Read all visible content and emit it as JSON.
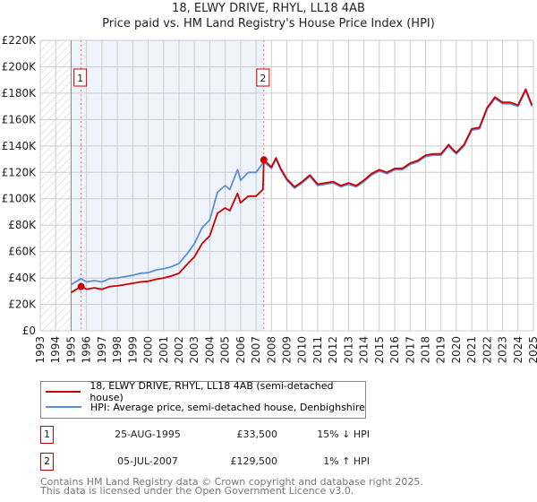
{
  "chart_data": {
    "type": "line",
    "title": "18, ELWY DRIVE, RHYL, LL18 4AB",
    "subtitle": "Price paid vs. HM Land Registry's House Price Index (HPI)",
    "xlim": [
      1993,
      2025
    ],
    "ylim": [
      0,
      220000
    ],
    "x_ticks": [
      "1993",
      "1994",
      "1995",
      "1996",
      "1997",
      "1998",
      "1999",
      "2000",
      "2001",
      "2002",
      "2003",
      "2004",
      "2005",
      "2006",
      "2007",
      "2008",
      "2009",
      "2010",
      "2011",
      "2012",
      "2013",
      "2014",
      "2015",
      "2016",
      "2017",
      "2018",
      "2019",
      "2020",
      "2021",
      "2022",
      "2023",
      "2024",
      "2025"
    ],
    "y_ticks": [
      "£0",
      "£20K",
      "£40K",
      "£60K",
      "£80K",
      "£100K",
      "£120K",
      "£140K",
      "£160K",
      "£180K",
      "£200K",
      "£220K"
    ],
    "grid": true,
    "series": [
      {
        "name": "18, ELWY DRIVE, RHYL, LL18 4AB (semi-detached house)",
        "color": "#cc0000",
        "x": [
          1995.0,
          1995.65,
          1996,
          1996.5,
          1997,
          1997.5,
          1998,
          1998.5,
          1999,
          1999.5,
          2000,
          2000.5,
          2001,
          2001.5,
          2002,
          2002.5,
          2003,
          2003.5,
          2004,
          2004.5,
          2005,
          2005.3,
          2005.8,
          2006,
          2006.5,
          2007,
          2007.45,
          2007.51,
          2008,
          2008.3,
          2008.6,
          2009,
          2009.5,
          2010,
          2010.5,
          2011,
          2011.5,
          2012,
          2012.5,
          2013,
          2013.5,
          2014,
          2014.5,
          2015,
          2015.5,
          2016,
          2016.5,
          2017,
          2017.5,
          2018,
          2018.5,
          2019,
          2019.5,
          2019.8,
          2020,
          2020.5,
          2021,
          2021.5,
          2022,
          2022.5,
          2023,
          2023.5,
          2024,
          2024.5,
          2024.9
        ],
        "y": [
          29000,
          33500,
          31500,
          32500,
          31500,
          33500,
          34000,
          35000,
          36000,
          37000,
          37500,
          39000,
          40000,
          41500,
          43500,
          50000,
          56000,
          66000,
          72000,
          89000,
          93000,
          91000,
          104000,
          97000,
          102000,
          102000,
          107000,
          129500,
          124000,
          131000,
          123000,
          115000,
          109000,
          113000,
          118000,
          111000,
          112000,
          113000,
          110000,
          112000,
          110000,
          114000,
          119000,
          122000,
          120000,
          123000,
          123000,
          127000,
          129000,
          133000,
          134000,
          134000,
          141000,
          137000,
          135000,
          141000,
          153000,
          154000,
          169000,
          177000,
          173000,
          173000,
          171000,
          183000,
          171000
        ]
      },
      {
        "name": "HPI: Average price, semi-detached house, Denbighshire",
        "color": "#5b8fd4",
        "x": [
          1995.0,
          1995.65,
          1996,
          1996.5,
          1997,
          1997.5,
          1998,
          1998.5,
          1999,
          1999.5,
          2000,
          2000.5,
          2001,
          2001.5,
          2002,
          2002.5,
          2003,
          2003.5,
          2004,
          2004.5,
          2005,
          2005.3,
          2005.8,
          2006,
          2006.5,
          2007,
          2007.51,
          2008,
          2008.3,
          2008.6,
          2009,
          2009.5,
          2010,
          2010.5,
          2011,
          2011.5,
          2012,
          2012.5,
          2013,
          2013.5,
          2014,
          2014.5,
          2015,
          2015.5,
          2016,
          2016.5,
          2017,
          2017.5,
          2018,
          2018.5,
          2019,
          2019.5,
          2019.8,
          2020,
          2020.5,
          2021,
          2021.5,
          2022,
          2022.5,
          2023,
          2023.5,
          2024,
          2024.5,
          2024.9
        ],
        "y": [
          35000,
          39500,
          37000,
          38000,
          37000,
          39500,
          40000,
          41000,
          42000,
          43500,
          44000,
          46000,
          47000,
          48500,
          51000,
          58000,
          66000,
          78000,
          84000,
          105000,
          110000,
          107000,
          122000,
          114000,
          120000,
          120000,
          128000,
          123000,
          130000,
          122000,
          114000,
          108000,
          112000,
          117000,
          110000,
          111000,
          112000,
          109000,
          111000,
          109000,
          113000,
          118000,
          121000,
          119000,
          122000,
          122000,
          126000,
          128000,
          132000,
          133000,
          133000,
          140000,
          136000,
          134000,
          140000,
          152000,
          153000,
          168000,
          176000,
          172000,
          172000,
          170000,
          182000,
          170000
        ]
      }
    ],
    "annotations": [
      {
        "label": "1",
        "x": 1995.65,
        "y": 33500
      },
      {
        "label": "2",
        "x": 2007.51,
        "y": 129500
      }
    ],
    "legend_placement": "bottom"
  },
  "legend": {
    "red_label": "18, ELWY DRIVE, RHYL, LL18 4AB (semi-detached house)",
    "blue_label": "HPI: Average price, semi-detached house, Denbighshire"
  },
  "transactions": [
    {
      "num": "1",
      "date": "25-AUG-1995",
      "price": "£33,500",
      "hpi": "15% ↓ HPI"
    },
    {
      "num": "2",
      "date": "05-JUL-2007",
      "price": "£129,500",
      "hpi": "1% ↑ HPI"
    }
  ],
  "footer": {
    "line1": "Contains HM Land Registry data © Crown copyright and database right 2025.",
    "line2": "This data is licensed under the Open Government Licence v3.0."
  }
}
